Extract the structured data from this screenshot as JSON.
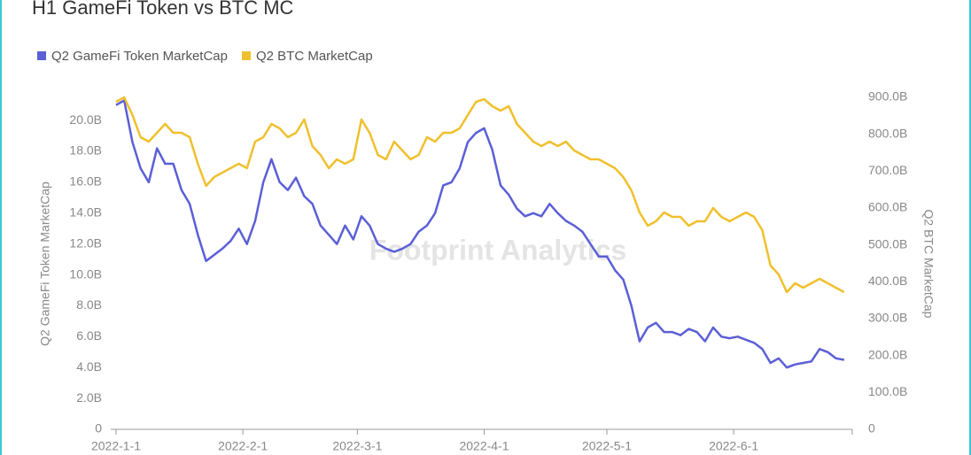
{
  "chart_data": {
    "type": "line",
    "title": "H1 GameFi Token vs BTC MC",
    "watermark": "Footprint Analytics",
    "y_label": "Q2 GameFi Token MarketCap",
    "y2_label": "Q2 BTC MarketCap",
    "x": [
      "2022-1-1",
      "2022-1-3",
      "2022-1-5",
      "2022-1-7",
      "2022-1-9",
      "2022-1-11",
      "2022-1-13",
      "2022-1-15",
      "2022-1-17",
      "2022-1-19",
      "2022-1-21",
      "2022-1-23",
      "2022-1-25",
      "2022-1-27",
      "2022-1-29",
      "2022-1-31",
      "2022-2-2",
      "2022-2-4",
      "2022-2-6",
      "2022-2-8",
      "2022-2-10",
      "2022-2-12",
      "2022-2-14",
      "2022-2-16",
      "2022-2-18",
      "2022-2-20",
      "2022-2-22",
      "2022-2-24",
      "2022-2-26",
      "2022-2-28",
      "2022-3-2",
      "2022-3-4",
      "2022-3-6",
      "2022-3-8",
      "2022-3-10",
      "2022-3-12",
      "2022-3-14",
      "2022-3-16",
      "2022-3-18",
      "2022-3-20",
      "2022-3-22",
      "2022-3-24",
      "2022-3-26",
      "2022-3-28",
      "2022-3-30",
      "2022-4-1",
      "2022-4-3",
      "2022-4-5",
      "2022-4-7",
      "2022-4-9",
      "2022-4-11",
      "2022-4-13",
      "2022-4-15",
      "2022-4-17",
      "2022-4-19",
      "2022-4-21",
      "2022-4-23",
      "2022-4-25",
      "2022-4-27",
      "2022-4-29",
      "2022-5-1",
      "2022-5-3",
      "2022-5-5",
      "2022-5-7",
      "2022-5-9",
      "2022-5-11",
      "2022-5-13",
      "2022-5-15",
      "2022-5-17",
      "2022-5-19",
      "2022-5-21",
      "2022-5-23",
      "2022-5-25",
      "2022-5-27",
      "2022-5-29",
      "2022-5-31",
      "2022-6-2",
      "2022-6-4",
      "2022-6-6",
      "2022-6-8",
      "2022-6-10",
      "2022-6-12",
      "2022-6-14",
      "2022-6-16",
      "2022-6-18",
      "2022-6-20",
      "2022-6-22",
      "2022-6-24",
      "2022-6-26",
      "2022-6-28"
    ],
    "series": [
      {
        "name": "Q2 GameFi Token MarketCap",
        "color": "#5b5fd6",
        "axis": "y",
        "values": [
          21.0,
          21.3,
          18.6,
          16.9,
          16.0,
          18.2,
          17.2,
          17.2,
          15.5,
          14.6,
          12.6,
          10.9,
          11.3,
          11.7,
          12.2,
          13.0,
          12.0,
          13.5,
          16.0,
          17.5,
          16.0,
          15.5,
          16.3,
          15.1,
          14.6,
          13.2,
          12.6,
          12.0,
          13.2,
          12.3,
          13.8,
          13.2,
          12.0,
          11.7,
          11.5,
          11.7,
          12.0,
          12.8,
          13.2,
          14.0,
          15.8,
          16.0,
          16.9,
          18.6,
          19.2,
          19.5,
          18.1,
          15.8,
          15.2,
          14.3,
          13.8,
          14.0,
          13.8,
          14.6,
          14.0,
          13.5,
          13.2,
          12.8,
          12.0,
          11.2,
          11.2,
          10.3,
          9.7,
          8.0,
          5.7,
          6.6,
          6.9,
          6.3,
          6.3,
          6.1,
          6.5,
          6.3,
          5.7,
          6.6,
          6.0,
          5.9,
          6.0,
          5.8,
          5.6,
          5.2,
          4.3,
          4.6,
          4.0,
          4.2,
          4.3,
          4.4,
          5.2,
          5.0,
          4.6,
          4.5
        ]
      },
      {
        "name": "Q2 BTC MarketCap",
        "color": "#f0c02c",
        "axis": "y2",
        "values": [
          888,
          900,
          852,
          792,
          780,
          804,
          828,
          804,
          804,
          792,
          720,
          660,
          684,
          696,
          708,
          720,
          708,
          780,
          792,
          828,
          816,
          792,
          804,
          840,
          768,
          744,
          708,
          732,
          720,
          732,
          840,
          804,
          744,
          732,
          780,
          756,
          732,
          744,
          792,
          780,
          804,
          804,
          816,
          852,
          888,
          895,
          876,
          864,
          876,
          828,
          804,
          780,
          768,
          780,
          768,
          780,
          756,
          744,
          732,
          732,
          720,
          708,
          684,
          648,
          588,
          552,
          564,
          588,
          576,
          576,
          552,
          564,
          564,
          600,
          576,
          564,
          576,
          588,
          576,
          540,
          444,
          420,
          372,
          396,
          384,
          396,
          408,
          396,
          384,
          372
        ]
      }
    ],
    "xlim": [
      "2022-1-1",
      "2022-6-30"
    ],
    "xticks": [
      "2022-1-1",
      "2022-2-1",
      "2022-3-1",
      "2022-4-1",
      "2022-5-1",
      "2022-6-1"
    ],
    "ylim": [
      0,
      21.5
    ],
    "yticks": [
      0,
      {
        "value": 2,
        "label": "2.0B"
      },
      {
        "value": 4,
        "label": "4.0B"
      },
      {
        "value": 6,
        "label": "6.0B"
      },
      {
        "value": 8,
        "label": "8.0B"
      },
      {
        "value": 10,
        "label": "10.0B"
      },
      {
        "value": 12,
        "label": "12.0B"
      },
      {
        "value": 14,
        "label": "14.0B"
      },
      {
        "value": 16,
        "label": "16.0B"
      },
      {
        "value": 18,
        "label": "18.0B"
      },
      {
        "value": 20,
        "label": "20.0B"
      }
    ],
    "y2lim": [
      0,
      900
    ],
    "y2ticks": [
      0,
      {
        "value": 100,
        "label": "100.0B"
      },
      {
        "value": 200,
        "label": "200.0B"
      },
      {
        "value": 300,
        "label": "300.0B"
      },
      {
        "value": 400,
        "label": "400.0B"
      },
      {
        "value": 500,
        "label": "500.0B"
      },
      {
        "value": 600,
        "label": "600.0B"
      },
      {
        "value": 700,
        "label": "700.0B"
      },
      {
        "value": 800,
        "label": "800.0B"
      },
      {
        "value": 900,
        "label": "900.0B"
      }
    ],
    "grid": false,
    "legend": "top-left"
  }
}
